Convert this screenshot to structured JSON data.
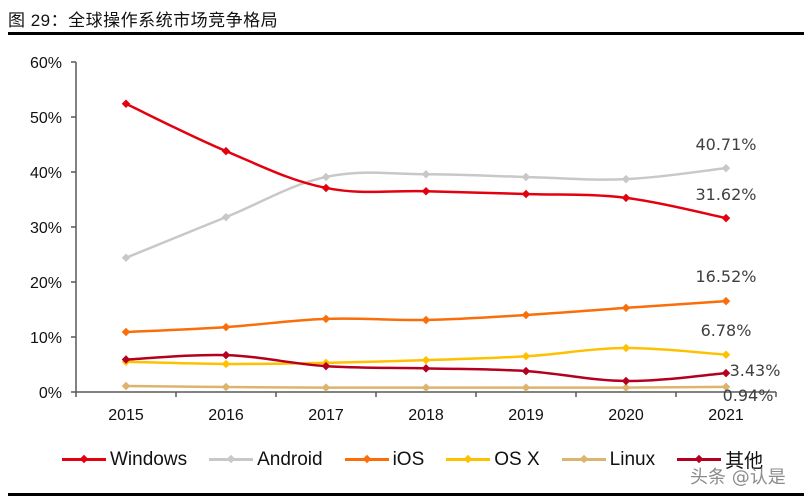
{
  "figure": {
    "title": "图 29：全球操作系统市场竞争格局",
    "watermark": "头条 @认是"
  },
  "chart_data": {
    "type": "line",
    "title": "全球操作系统市场竞争格局",
    "xlabel": "",
    "ylabel": "",
    "x": [
      "2015",
      "2016",
      "2017",
      "2018",
      "2019",
      "2020",
      "2021"
    ],
    "ylim": [
      0,
      60
    ],
    "yticks": [
      0,
      10,
      20,
      30,
      40,
      50,
      60
    ],
    "ytick_labels": [
      "0%",
      "10%",
      "20%",
      "30%",
      "40%",
      "50%",
      "60%"
    ],
    "grid": false,
    "legend_position": "bottom",
    "series": [
      {
        "name": "Windows",
        "color": "#e3000f",
        "values": [
          52.4,
          43.8,
          37.1,
          36.5,
          36.0,
          35.3,
          31.62
        ],
        "end_label": "31.62%"
      },
      {
        "name": "Android",
        "color": "#c8c8c8",
        "values": [
          24.4,
          31.8,
          39.1,
          39.6,
          39.1,
          38.7,
          40.71
        ],
        "end_label": "40.71%"
      },
      {
        "name": "iOS",
        "color": "#fa6e0a",
        "values": [
          10.9,
          11.8,
          13.3,
          13.1,
          14.0,
          15.3,
          16.52
        ],
        "end_label": "16.52%"
      },
      {
        "name": "OS X",
        "color": "#ffc000",
        "values": [
          5.5,
          5.1,
          5.3,
          5.8,
          6.5,
          8.0,
          6.78
        ],
        "end_label": "6.78%"
      },
      {
        "name": "Linux",
        "color": "#dcb46e",
        "values": [
          1.1,
          0.9,
          0.8,
          0.8,
          0.8,
          0.8,
          0.94
        ],
        "end_label": "0.94%"
      },
      {
        "name": "其他",
        "color": "#b4001e",
        "values": [
          5.9,
          6.7,
          4.7,
          4.3,
          3.8,
          2.0,
          3.43
        ],
        "end_label": "3.43%"
      }
    ]
  }
}
